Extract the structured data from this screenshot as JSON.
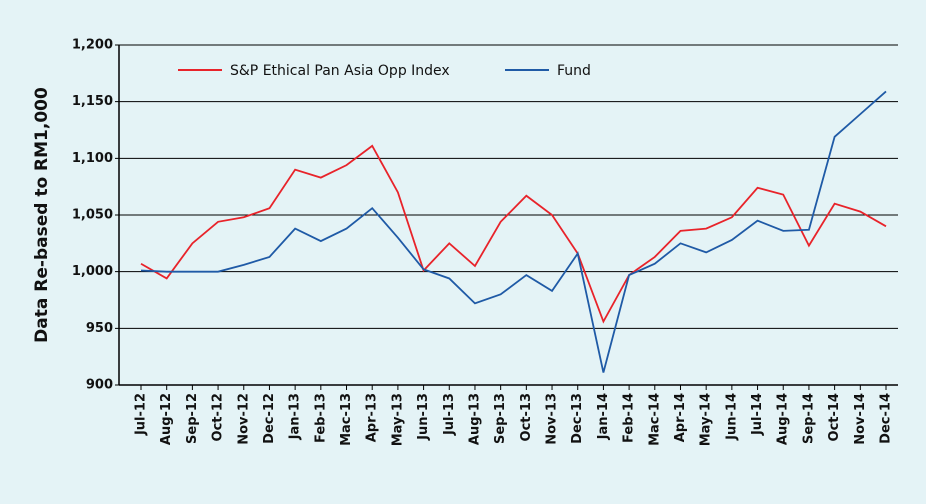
{
  "chart_data": {
    "type": "line",
    "y_label": "Data Re-based to RM1,000",
    "categories": [
      "Jul-12",
      "Aug-12",
      "Sep-12",
      "Oct-12",
      "Nov-12",
      "Dec-12",
      "Jan-13",
      "Feb-13",
      "Mac-13",
      "Apr-13",
      "May-13",
      "Jun-13",
      "Jul-13",
      "Aug-13",
      "Sep-13",
      "Oct-13",
      "Nov-13",
      "Dec-13",
      "Jan-14",
      "Feb-14",
      "Mac-14",
      "Apr-14",
      "May-14",
      "Jun-14",
      "Jul-14",
      "Aug-14",
      "Sep-14",
      "Oct-14",
      "Nov-14",
      "Dec-14"
    ],
    "series": [
      {
        "name": "S&P Ethical Pan Asia Opp Index",
        "color": "#e8232a",
        "values": [
          1007,
          994,
          1025,
          1044,
          1048,
          1056,
          1090,
          1083,
          1094,
          1111,
          1070,
          1001,
          1025,
          1005,
          1044,
          1067,
          1050,
          1016,
          956,
          997,
          1013,
          1036,
          1038,
          1048,
          1074,
          1068,
          1023,
          1060,
          1053,
          1040
        ]
      },
      {
        "name": "Fund",
        "color": "#1f5aa6",
        "values": [
          1001,
          1000,
          1000,
          1000,
          1006,
          1013,
          1038,
          1027,
          1038,
          1056,
          1030,
          1002,
          994,
          972,
          980,
          997,
          983,
          1016,
          911,
          997,
          1007,
          1025,
          1017,
          1028,
          1045,
          1036,
          1037,
          1119,
          1139,
          1159
        ]
      }
    ],
    "ylim": [
      900,
      1200
    ],
    "yticks": [
      {
        "value": 900,
        "label": "900"
      },
      {
        "value": 950,
        "label": "950"
      },
      {
        "value": 1000,
        "label": "1,000"
      },
      {
        "value": 1050,
        "label": "1,050"
      },
      {
        "value": 1100,
        "label": "1,100"
      },
      {
        "value": 1150,
        "label": "1,150"
      },
      {
        "value": 1200,
        "label": "1,200"
      }
    ],
    "grid": true,
    "legend": "top-left"
  }
}
